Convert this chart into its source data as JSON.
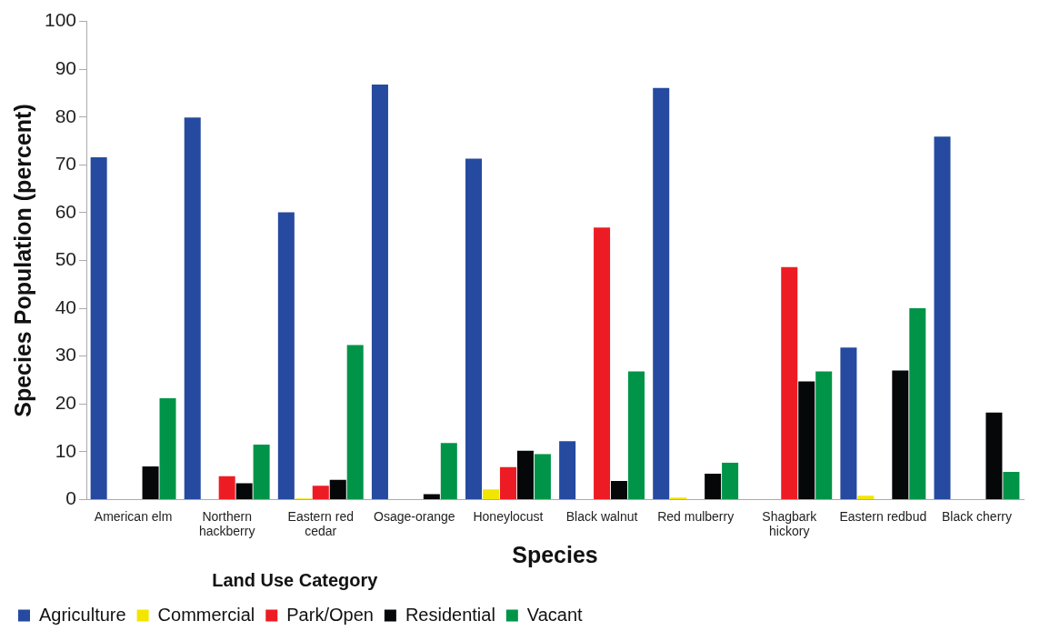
{
  "chart_data": {
    "type": "bar",
    "xlabel": "Species",
    "ylabel": "Species Population (percent)",
    "legend_title": "Land Use Category",
    "legend": "bottom left",
    "grid": false,
    "categories": [
      "American elm",
      "Northern hackberry",
      "Eastern red cedar",
      "Osage-orange",
      "Honeylocust",
      "Black walnut",
      "Red mulberry",
      "Shagbark hickory",
      "Eastern redbud",
      "Black cherry"
    ],
    "ylim": [
      0,
      100
    ],
    "yticks": [
      0,
      10,
      20,
      30,
      40,
      50,
      60,
      70,
      80,
      90,
      100
    ],
    "series": [
      {
        "name": "Agriculture",
        "color": "#254aa0",
        "values": [
          71.6,
          79.9,
          60.1,
          86.8,
          71.3,
          12.2,
          86.1,
          0,
          31.8,
          75.9
        ]
      },
      {
        "name": "Commercial",
        "color": "#f2e600",
        "values": [
          0,
          0,
          0.2,
          0,
          2.1,
          0,
          0.4,
          0,
          0.8,
          0
        ]
      },
      {
        "name": "Park/Open",
        "color": "#ed1c24",
        "values": [
          0,
          4.9,
          2.9,
          0,
          6.8,
          56.9,
          0,
          48.6,
          0,
          0
        ]
      },
      {
        "name": "Residential",
        "color": "#050708",
        "values": [
          6.9,
          3.4,
          4.1,
          1.1,
          10.2,
          3.9,
          5.4,
          24.7,
          27.0,
          18.2
        ]
      },
      {
        "name": "Vacant",
        "color": "#009448",
        "values": [
          21.2,
          11.5,
          32.3,
          11.8,
          9.5,
          26.8,
          7.7,
          26.8,
          40.0,
          5.8
        ]
      }
    ]
  }
}
